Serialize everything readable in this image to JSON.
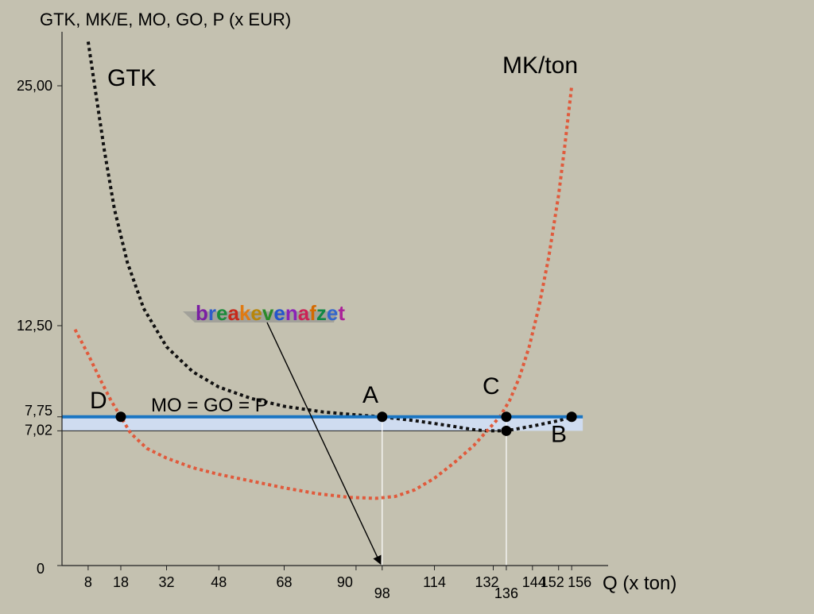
{
  "chart_data": {
    "type": "line",
    "ylabel": "GTK, MK/E, MO, GO, P (x EUR)",
    "xlabel": "Q (x ton)",
    "y_ticks": [
      "25,00",
      "12,50",
      "7,75",
      "7,02",
      "0"
    ],
    "y_tick_values": [
      25.0,
      12.5,
      7.75,
      7.02,
      0
    ],
    "x_ticks": [
      "8",
      "18",
      "32",
      "48",
      "68",
      "90",
      "98",
      "114",
      "132",
      "136",
      "144",
      "152",
      "156"
    ],
    "x_tick_values": [
      8,
      18,
      32,
      48,
      68,
      90,
      98,
      114,
      132,
      136,
      144,
      152,
      156
    ],
    "xlim": [
      0,
      172
    ],
    "ylim": [
      0,
      27.3
    ],
    "series": [
      {
        "name": "GTK",
        "color": "#111111",
        "style": "dotted",
        "x": [
          8,
          10,
          13,
          16,
          20,
          25,
          32,
          40,
          48,
          58,
          68,
          80,
          90,
          98,
          108,
          118,
          126,
          130,
          134,
          138,
          145,
          152,
          156
        ],
        "y": [
          27.3,
          25.0,
          21.6,
          18.6,
          15.8,
          13.4,
          11.4,
          10.1,
          9.3,
          8.7,
          8.3,
          8.0,
          7.85,
          7.75,
          7.55,
          7.3,
          7.08,
          7.02,
          7.02,
          7.08,
          7.3,
          7.55,
          7.75
        ]
      },
      {
        "name": "MK/ton",
        "color": "#e05a3c",
        "style": "dotted",
        "x": [
          4,
          8,
          12,
          15,
          18,
          21,
          26,
          32,
          40,
          48,
          58,
          68,
          78,
          88,
          96,
          102,
          108,
          114,
          120,
          126,
          130,
          134,
          137,
          140,
          143,
          146,
          149,
          152,
          154,
          156
        ],
        "y": [
          12.3,
          11.0,
          9.6,
          8.6,
          7.75,
          6.9,
          6.1,
          5.6,
          5.1,
          4.75,
          4.4,
          4.05,
          3.75,
          3.55,
          3.5,
          3.6,
          3.95,
          4.55,
          5.35,
          6.25,
          7.0,
          7.75,
          8.6,
          9.8,
          11.4,
          13.5,
          16.1,
          19.3,
          22.0,
          25.0
        ]
      },
      {
        "name": "MO = GO = P",
        "color": "#1a75c2",
        "style": "solid",
        "x": [
          0,
          175
        ],
        "y": [
          7.75,
          7.75
        ]
      }
    ],
    "points": [
      {
        "label": "D",
        "x": 18,
        "y": 7.75
      },
      {
        "label": "A",
        "x": 98,
        "y": 7.75
      },
      {
        "label": "C",
        "x": 136,
        "y": 7.75
      },
      {
        "label": "B",
        "x": 136,
        "y": 7.02
      },
      {
        "label": "",
        "x": 156,
        "y": 7.75
      }
    ],
    "band": {
      "from": 7.02,
      "to": 7.75,
      "color": "#cfdcf0"
    },
    "annotations": {
      "gtk_label": "GTK",
      "mk_label": "MK/ton",
      "price_label": "MO = GO = P",
      "breakeven": "breakevenafzet",
      "breakeven_colors": [
        "#7a1fa3",
        "#2e5cc9",
        "#1b8b3a",
        "#c7291b",
        "#e07a12",
        "#b8860b",
        "#2a8a2a",
        "#2255cc",
        "#8a22b8",
        "#cc2255",
        "#d46a00",
        "#118844",
        "#3366cc",
        "#aa2299"
      ]
    }
  }
}
